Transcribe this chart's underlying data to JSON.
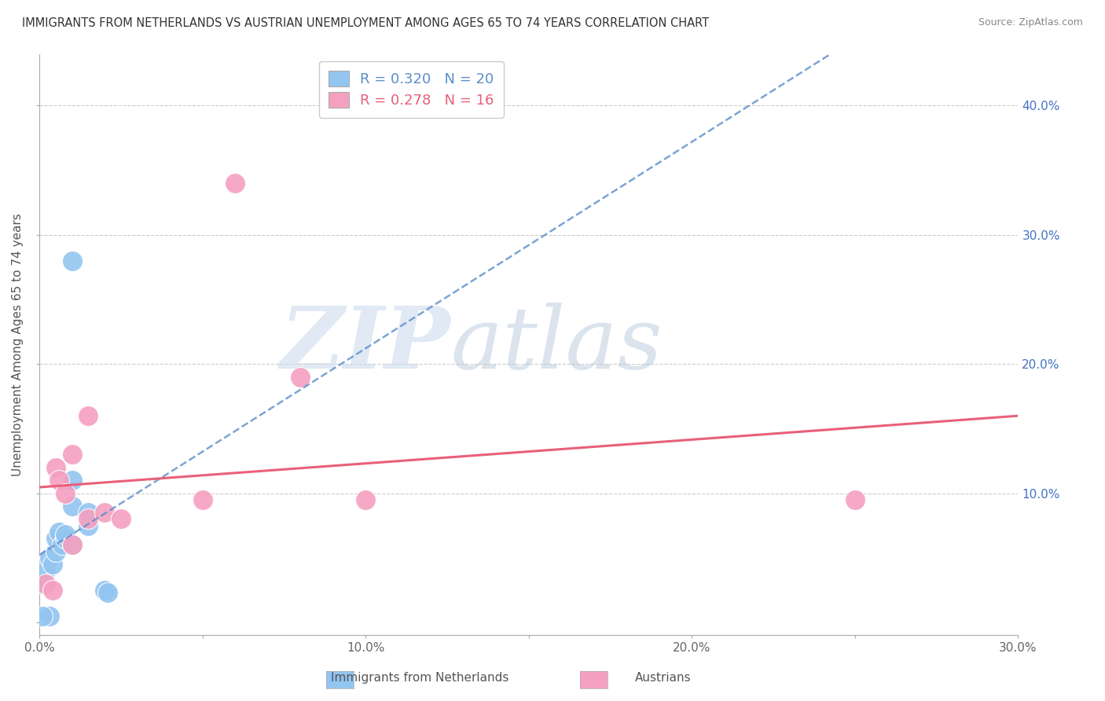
{
  "title": "IMMIGRANTS FROM NETHERLANDS VS AUSTRIAN UNEMPLOYMENT AMONG AGES 65 TO 74 YEARS CORRELATION CHART",
  "source": "Source: ZipAtlas.com",
  "ylabel": "Unemployment Among Ages 65 to 74 years",
  "xlim": [
    0.0,
    0.3
  ],
  "ylim": [
    -0.01,
    0.44
  ],
  "xticks": [
    0.0,
    0.05,
    0.1,
    0.15,
    0.2,
    0.25,
    0.3
  ],
  "xticklabels": [
    "0.0%",
    "",
    "10.0%",
    "",
    "20.0%",
    "",
    "30.0%"
  ],
  "yticks": [
    0.0,
    0.1,
    0.2,
    0.3,
    0.4
  ],
  "right_yticklabels": [
    "",
    "10.0%",
    "20.0%",
    "30.0%",
    "40.0%"
  ],
  "blue_R": 0.32,
  "blue_N": 20,
  "pink_R": 0.278,
  "pink_N": 16,
  "blue_color": "#92C5F0",
  "pink_color": "#F5A0C0",
  "blue_line_color": "#5B8EC9",
  "pink_line_color": "#E8607A",
  "blue_scatter": [
    [
      0.001,
      0.03
    ],
    [
      0.002,
      0.04
    ],
    [
      0.003,
      0.05
    ],
    [
      0.004,
      0.045
    ],
    [
      0.005,
      0.055
    ],
    [
      0.005,
      0.065
    ],
    [
      0.006,
      0.07
    ],
    [
      0.007,
      0.06
    ],
    [
      0.008,
      0.065
    ],
    [
      0.008,
      0.068
    ],
    [
      0.01,
      0.06
    ],
    [
      0.01,
      0.09
    ],
    [
      0.01,
      0.11
    ],
    [
      0.01,
      0.28
    ],
    [
      0.015,
      0.075
    ],
    [
      0.015,
      0.085
    ],
    [
      0.02,
      0.025
    ],
    [
      0.021,
      0.023
    ],
    [
      0.003,
      0.005
    ],
    [
      0.001,
      0.005
    ]
  ],
  "pink_scatter": [
    [
      0.002,
      0.03
    ],
    [
      0.004,
      0.025
    ],
    [
      0.005,
      0.12
    ],
    [
      0.006,
      0.11
    ],
    [
      0.008,
      0.1
    ],
    [
      0.01,
      0.13
    ],
    [
      0.015,
      0.16
    ],
    [
      0.015,
      0.08
    ],
    [
      0.02,
      0.085
    ],
    [
      0.025,
      0.08
    ],
    [
      0.05,
      0.095
    ],
    [
      0.08,
      0.19
    ],
    [
      0.06,
      0.34
    ],
    [
      0.1,
      0.095
    ],
    [
      0.25,
      0.095
    ],
    [
      0.01,
      0.06
    ]
  ],
  "watermark_zip": "ZIP",
  "watermark_atlas": "atlas",
  "watermark_color_zip": "#C8D8E8",
  "watermark_color_atlas": "#B8C8D8",
  "background_color": "#FFFFFF",
  "grid_color": "#CCCCCC",
  "legend_series_blue": "Immigrants from Netherlands",
  "legend_series_pink": "Austrians"
}
